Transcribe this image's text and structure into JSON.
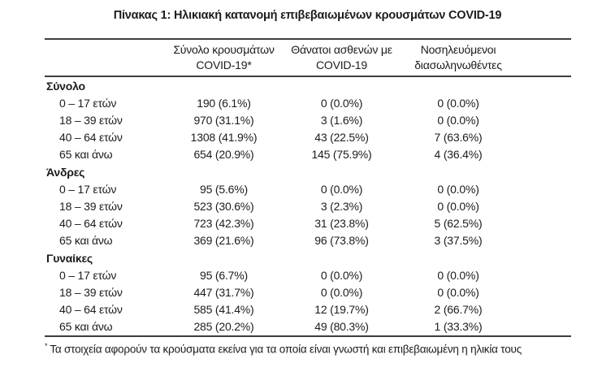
{
  "title": "Πίνακας 1: Ηλικιακή κατανομή επιβεβαιωμένων κρουσμάτων COVID-19",
  "table": {
    "headers": {
      "cases": "Σύνολο κρουσμάτων\nCOVID-19*",
      "deaths": "Θάνατοι ασθενών με\nCOVID-19",
      "intubated": "Νοσηλευόμενοι\nδιασωληνωθέντες"
    },
    "sections": [
      {
        "label": "Σύνολο",
        "rows": [
          {
            "age": "0 – 17 ετών",
            "cases": "190 (6.1%)",
            "deaths": "0 (0.0%)",
            "intubated": "0 (0.0%)"
          },
          {
            "age": "18 – 39 ετών",
            "cases": "970 (31.1%)",
            "deaths": "3 (1.6%)",
            "intubated": "0 (0.0%)"
          },
          {
            "age": "40 – 64 ετών",
            "cases": "1308 (41.9%)",
            "deaths": "43 (22.5%)",
            "intubated": "7 (63.6%)"
          },
          {
            "age": "65 και άνω",
            "cases": "654 (20.9%)",
            "deaths": "145 (75.9%)",
            "intubated": "4 (36.4%)"
          }
        ]
      },
      {
        "label": "Άνδρες",
        "rows": [
          {
            "age": "0 – 17 ετών",
            "cases": "95 (5.6%)",
            "deaths": "0 (0.0%)",
            "intubated": "0 (0.0%)"
          },
          {
            "age": "18 – 39 ετών",
            "cases": "523 (30.6%)",
            "deaths": "3 (2.3%)",
            "intubated": "0 (0.0%)"
          },
          {
            "age": "40 – 64 ετών",
            "cases": "723 (42.3%)",
            "deaths": "31 (23.8%)",
            "intubated": "5 (62.5%)"
          },
          {
            "age": "65 και άνω",
            "cases": "369 (21.6%)",
            "deaths": "96 (73.8%)",
            "intubated": "3 (37.5%)"
          }
        ]
      },
      {
        "label": "Γυναίκες",
        "rows": [
          {
            "age": "0 – 17 ετών",
            "cases": "95 (6.7%)",
            "deaths": "0 (0.0%)",
            "intubated": "0 (0.0%)"
          },
          {
            "age": "18 – 39 ετών",
            "cases": "447 (31.7%)",
            "deaths": "0 (0.0%)",
            "intubated": "0 (0.0%)"
          },
          {
            "age": "40 – 64 ετών",
            "cases": "585 (41.4%)",
            "deaths": "12 (19.7%)",
            "intubated": "2 (66.7%)"
          },
          {
            "age": "65 και άνω",
            "cases": "285 (20.2%)",
            "deaths": "49 (80.3%)",
            "intubated": "1 (33.3%)"
          }
        ]
      }
    ]
  },
  "footnote": {
    "marker": "*",
    "text": "Τα στοιχεία αφορούν τα κρούσματα εκείνα για τα οποία είναι γνωστή και επιβεβαιωμένη η ηλικία τους"
  },
  "colors": {
    "text": "#1c1c1c",
    "rule": "#3d3d3d",
    "background": "#ffffff"
  }
}
